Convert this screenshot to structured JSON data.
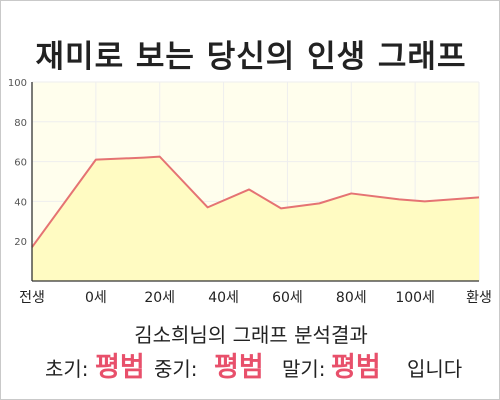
{
  "title": "재미로 보는 당신의 인생 그래프",
  "chart_data": {
    "type": "area",
    "title": "재미로 보는 당신의 인생 그래프",
    "x": [
      -20,
      0,
      15,
      20,
      35,
      48,
      58,
      70,
      80,
      95,
      103,
      120
    ],
    "series": [
      {
        "values": [
          17,
          61,
          62,
          62.5,
          37,
          46,
          36.5,
          39,
          44,
          41,
          40,
          42
        ]
      }
    ],
    "x_ticks": [
      {
        "value": -20,
        "label": "전생"
      },
      {
        "value": 0,
        "label": "0세"
      },
      {
        "value": 20,
        "label": "20세"
      },
      {
        "value": 40,
        "label": "40세"
      },
      {
        "value": 60,
        "label": "60세"
      },
      {
        "value": 80,
        "label": "80세"
      },
      {
        "value": 100,
        "label": "100세"
      },
      {
        "value": 120,
        "label": "환생"
      }
    ],
    "y_ticks": [
      20,
      40,
      60,
      80,
      100
    ],
    "xlim": [
      -20,
      120
    ],
    "ylim": [
      0,
      100
    ],
    "grid": true,
    "colors": {
      "line": "#e57373",
      "fill": "#fffbc2",
      "plot_bg": "#fffeed",
      "grid": "#eeeeee",
      "axis": "#333333"
    }
  },
  "summary": {
    "heading": "김소희님의 그래프 분석결과",
    "early_label": "초기:",
    "early_value": "평범",
    "middle_label": "중기:",
    "middle_value": "평범",
    "late_label": "말기:",
    "late_value": "평범",
    "ending": "입니다"
  }
}
